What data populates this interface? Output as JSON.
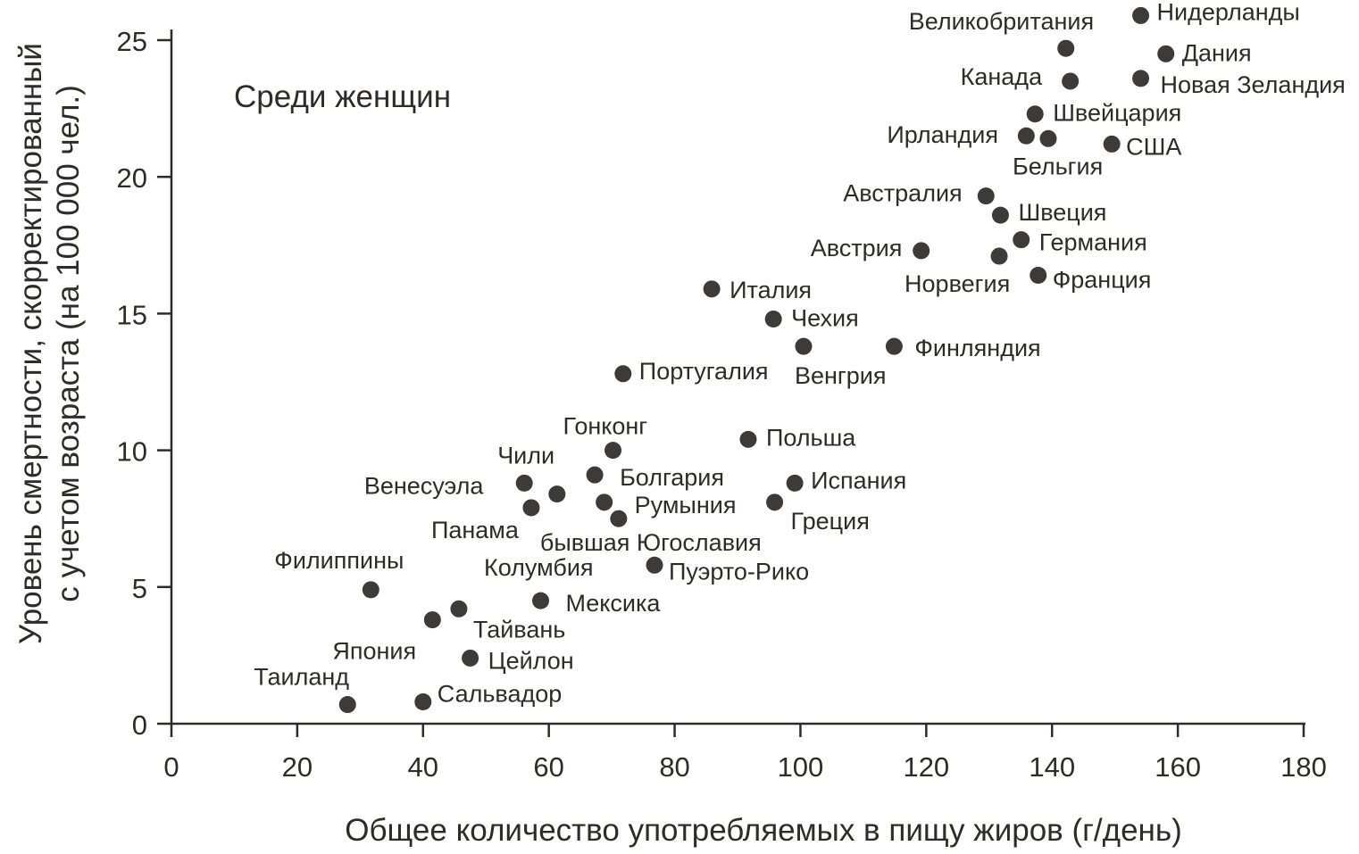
{
  "chart_data": {
    "type": "scatter",
    "title": "",
    "annotation": "Среди женщин",
    "xlabel": "Общее количество употребляемых в пищу жиров (г/день)",
    "ylabel_lines": [
      "Уровень смертности, скорректированный",
      "с учетом возраста (на 100 000 чел.)"
    ],
    "xlim": [
      0,
      180
    ],
    "ylim": [
      0,
      25
    ],
    "xticks": [
      0,
      20,
      40,
      60,
      80,
      100,
      120,
      140,
      160,
      180
    ],
    "yticks": [
      0,
      5,
      10,
      15,
      20,
      25
    ],
    "grid": false,
    "colors": {
      "point": "#3d3a37",
      "text": "#2e2b28",
      "axis": "#2e2b28"
    },
    "points": [
      {
        "label": "Таиланд",
        "x": 28,
        "y": 0.7
      },
      {
        "label": "Сальвадор",
        "x": 40,
        "y": 0.8
      },
      {
        "label": "Цейлон",
        "x": 47.5,
        "y": 2.4
      },
      {
        "label": "Япония",
        "x": 41.5,
        "y": 3.8
      },
      {
        "label": "Тайвань",
        "x": 45.7,
        "y": 4.2
      },
      {
        "label": "Филиппины",
        "x": 31.7,
        "y": 4.9
      },
      {
        "label": "Мексика",
        "x": 58.7,
        "y": 4.5
      },
      {
        "label": "Колумбия",
        "x": "",
        "y": ""
      },
      {
        "label": "Пуэрто-Рико",
        "x": 76.8,
        "y": 5.8
      },
      {
        "label": "Панама",
        "x": 57.2,
        "y": 7.9
      },
      {
        "label": "Чили",
        "x": 56.1,
        "y": 8.8
      },
      {
        "label": "Венесуэла",
        "x": 61.3,
        "y": 8.4
      },
      {
        "label": "Гонконг",
        "x": 70.2,
        "y": 10.0
      },
      {
        "label": "Болгария",
        "x": 67.3,
        "y": 9.1
      },
      {
        "label": "Румыния",
        "x": 68.8,
        "y": 8.1
      },
      {
        "label": "бывшая Югославия",
        "x": 71.1,
        "y": 7.5
      },
      {
        "label": "Португалия",
        "x": 71.8,
        "y": 12.8
      },
      {
        "label": "Польша",
        "x": 91.7,
        "y": 10.4
      },
      {
        "label": "Испания",
        "x": 99.1,
        "y": 8.8
      },
      {
        "label": "Греция",
        "x": 95.9,
        "y": 8.1
      },
      {
        "label": "Италия",
        "x": 85.9,
        "y": 15.9
      },
      {
        "label": "Чехия",
        "x": 95.7,
        "y": 14.8
      },
      {
        "label": "Венгрия",
        "x": 100.5,
        "y": 13.8
      },
      {
        "label": "Финляндия",
        "x": 114.9,
        "y": 13.8
      },
      {
        "label": "Австрия",
        "x": 119.2,
        "y": 17.3
      },
      {
        "label": "Австралия",
        "x": 129.5,
        "y": 19.3
      },
      {
        "label": "Швеция",
        "x": 131.8,
        "y": 18.6
      },
      {
        "label": "Германия",
        "x": 135.1,
        "y": 17.7
      },
      {
        "label": "Норвегия",
        "x": 131.6,
        "y": 17.1
      },
      {
        "label": "Франция",
        "x": 137.8,
        "y": 16.4
      },
      {
        "label": "Ирландия",
        "x": 135.9,
        "y": 21.5
      },
      {
        "label": "Бельгия",
        "x": 139.4,
        "y": 21.4
      },
      {
        "label": "США",
        "x": 149.5,
        "y": 21.2
      },
      {
        "label": "Швейцария",
        "x": 137.3,
        "y": 22.3
      },
      {
        "label": "Канада",
        "x": 142.9,
        "y": 23.5
      },
      {
        "label": "Великобритания",
        "x": 142.2,
        "y": 24.7
      },
      {
        "label": "Новая Зеландия",
        "x": 154.1,
        "y": 23.6
      },
      {
        "label": "Дания",
        "x": 158.1,
        "y": 24.5
      },
      {
        "label": "Нидерланды",
        "x": 154.1,
        "y": 25.9
      }
    ]
  }
}
